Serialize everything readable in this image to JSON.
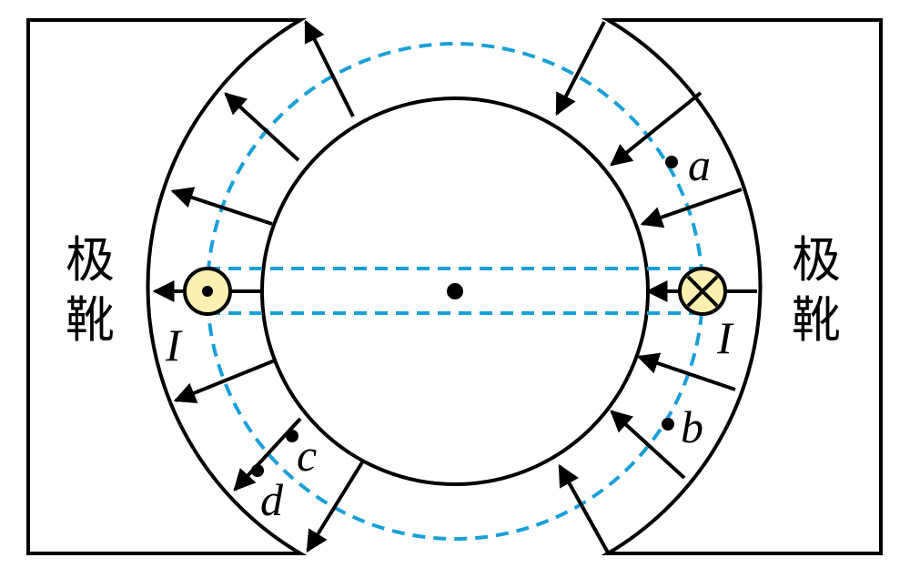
{
  "diagram": {
    "left_pole_label": "极靴",
    "right_pole_label": "极靴",
    "current_label_left": "I",
    "current_label_right": "I",
    "point_labels": {
      "a": "a",
      "b": "b",
      "c": "c",
      "d": "d"
    },
    "colors": {
      "line": "#000000",
      "dashed": "#1aa0d8",
      "conductor_fill": "#fbf0b0"
    },
    "current_left_direction": "out-of-page",
    "current_right_direction": "into-page"
  }
}
